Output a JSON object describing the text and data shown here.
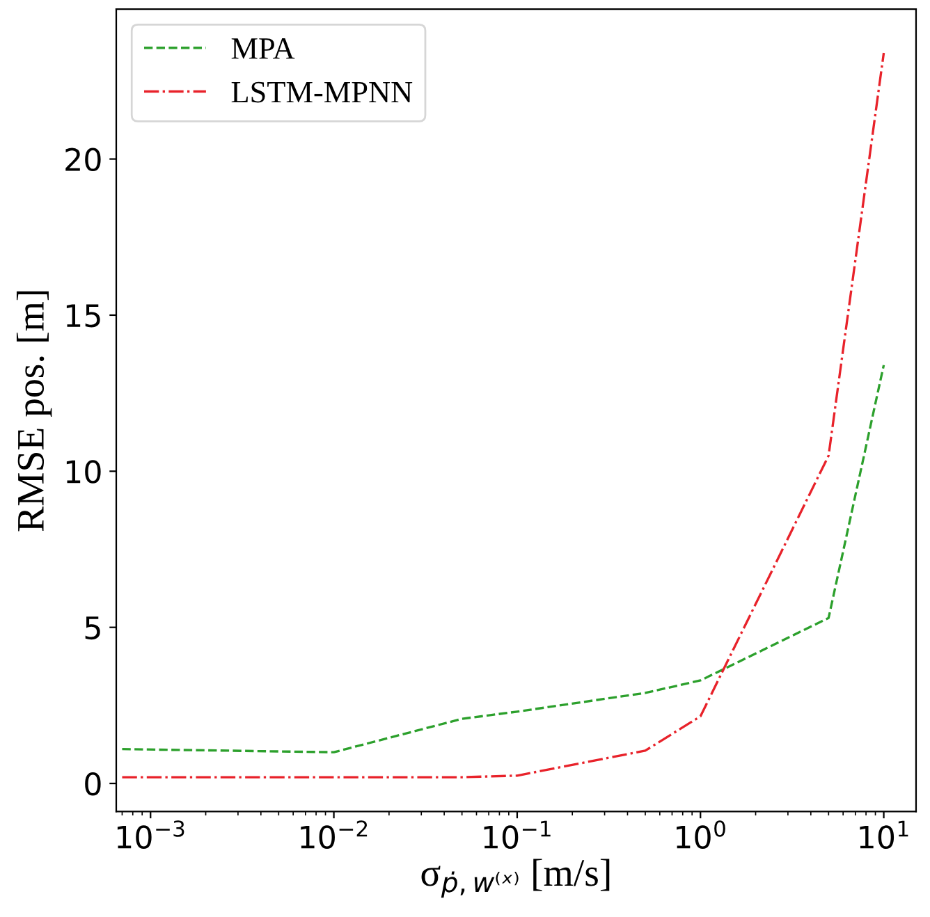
{
  "chart_data": {
    "type": "line",
    "xlabel": "σ$_{ṗ,w⁽ˣ⁾}$ [m/s]",
    "ylabel": "RMSE pos. [m]",
    "log": "x",
    "x": [
      0.0007,
      0.01,
      0.05,
      0.1,
      0.5,
      1,
      5,
      10
    ],
    "series": [
      {
        "name": "MPA",
        "color": "#2ca02c",
        "line_style": "dashed",
        "values": [
          1.1,
          1.0,
          2.07,
          2.3,
          2.9,
          3.3,
          5.3,
          13.4
        ]
      },
      {
        "name": "LSTM-MPNN",
        "color": "#e8222a",
        "line_style": "dashdot",
        "values": [
          0.2,
          0.2,
          0.2,
          0.25,
          1.05,
          2.15,
          10.5,
          23.4
        ]
      }
    ],
    "xlim": [
      0.00065,
      15
    ],
    "ylim": [
      -0.9,
      24.8
    ],
    "xticks": [
      {
        "value": 0.001,
        "label": "10$^{−3}$"
      },
      {
        "value": 0.01,
        "label": "10$^{−2}$"
      },
      {
        "value": 0.1,
        "label": "10$^{−1}$"
      },
      {
        "value": 1,
        "label": "10$^{0}$"
      },
      {
        "value": 10,
        "label": "10$^{1}$"
      }
    ],
    "yticks": [
      0,
      5,
      10,
      15,
      20
    ],
    "grid": false,
    "legend": "top left"
  }
}
